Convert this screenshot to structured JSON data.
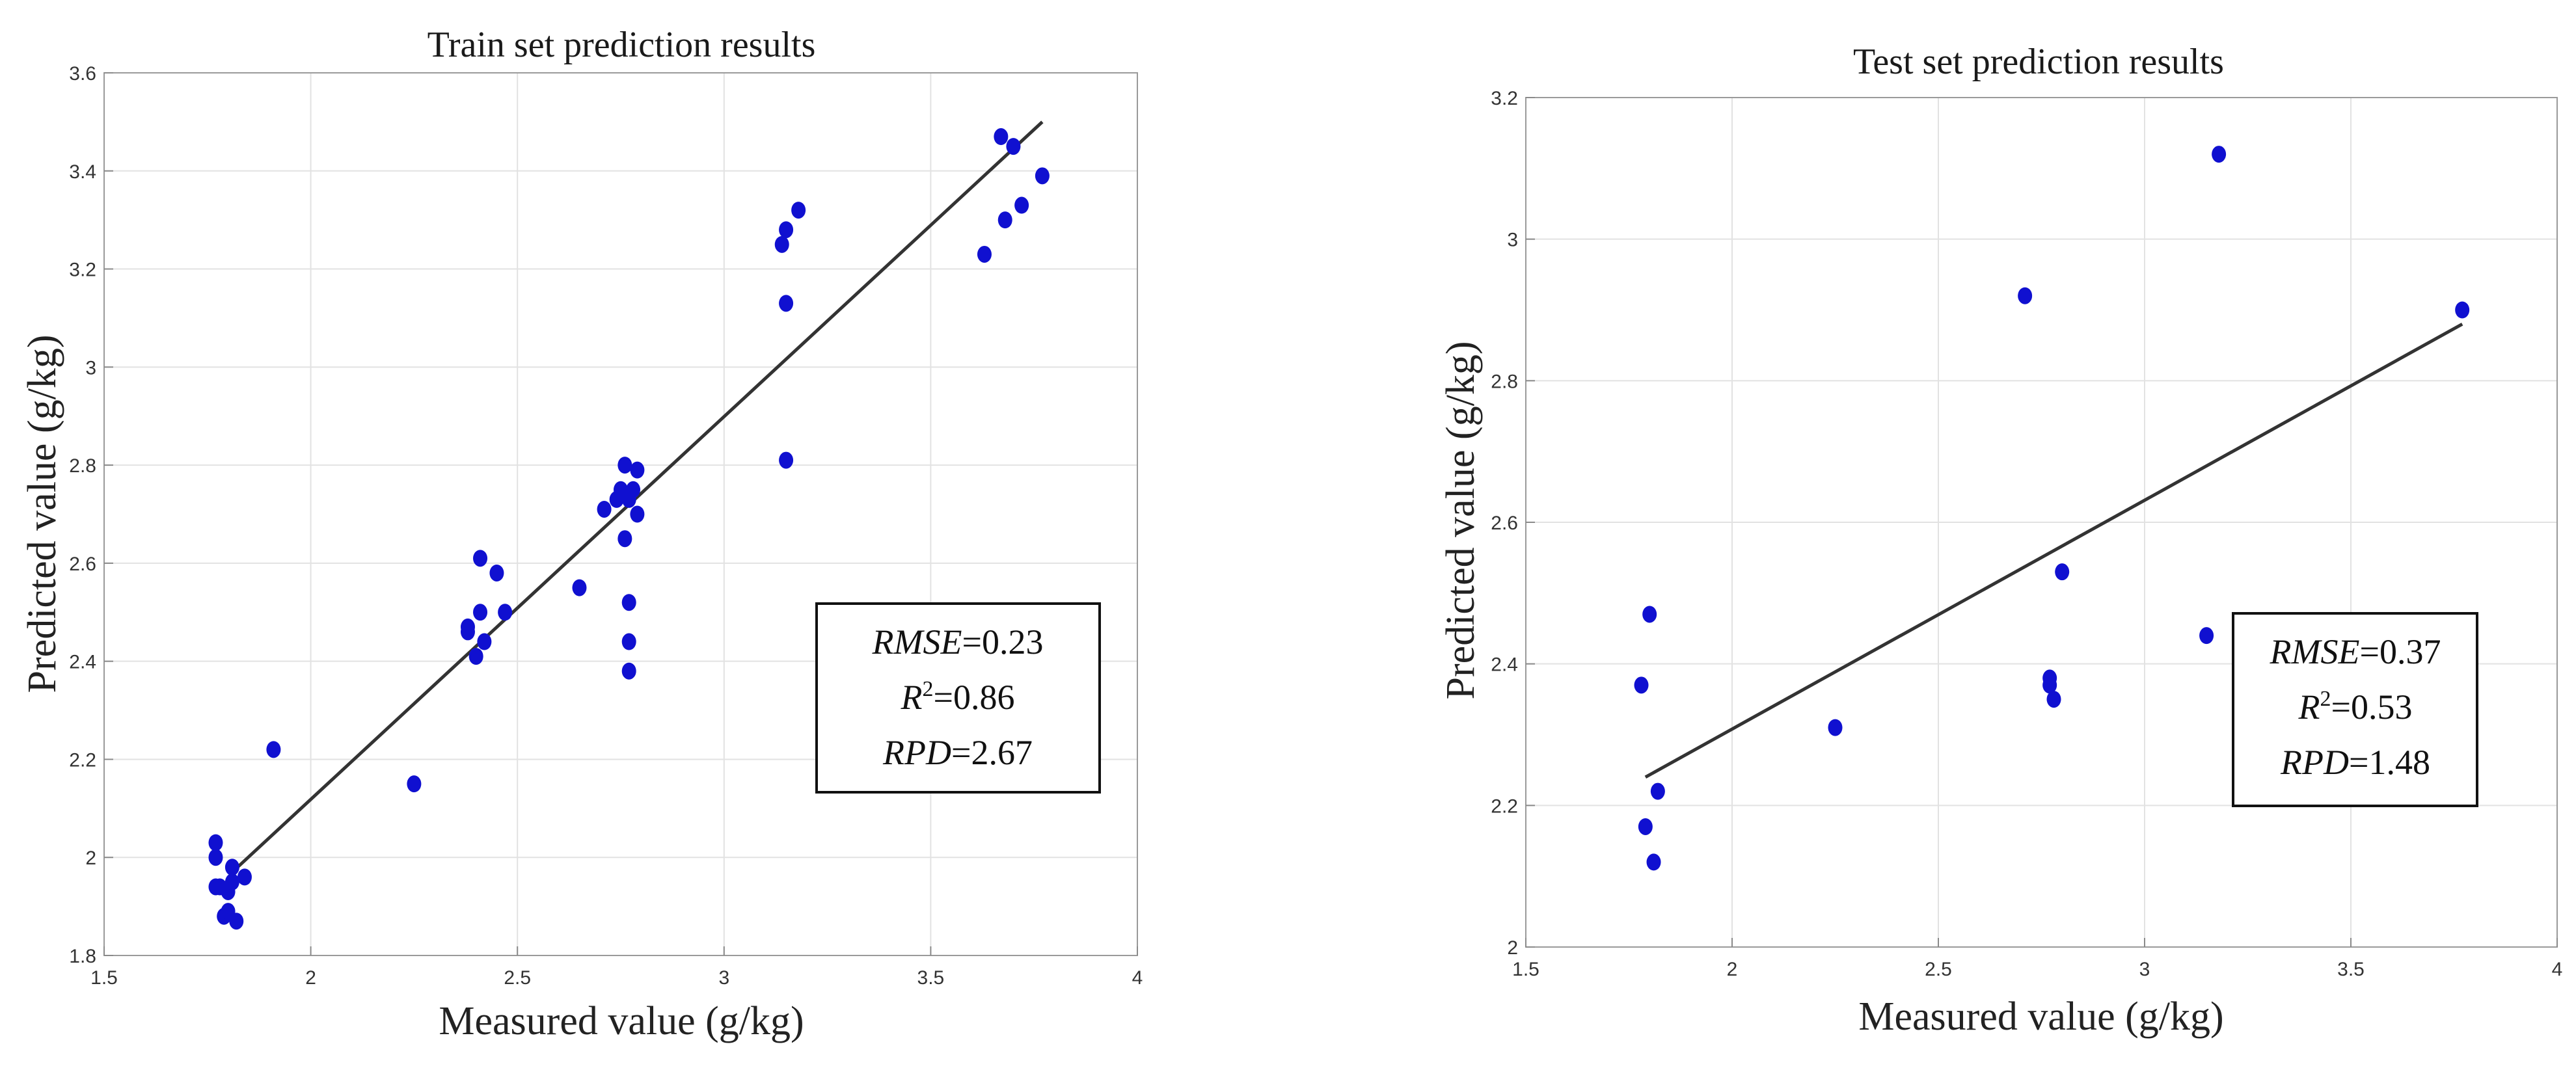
{
  "chart_data": [
    {
      "type": "scatter",
      "title": "Train set prediction results",
      "xlabel": "Measured value  (g/kg)",
      "ylabel": "Predicted value  (g/kg)",
      "xlim": [
        1.5,
        4
      ],
      "ylim": [
        1.8,
        3.6
      ],
      "xticks": [
        1.5,
        2,
        2.5,
        3,
        3.5,
        4
      ],
      "xtick_labels": [
        "1.5",
        "2",
        "2.5",
        "3",
        "3.5",
        "4"
      ],
      "yticks": [
        1.8,
        2,
        2.2,
        2.4,
        2.6,
        2.8,
        3,
        3.2,
        3.4,
        3.6
      ],
      "ytick_labels": [
        "1.8",
        "2",
        "2.2",
        "2.4",
        "2.6",
        "2.8",
        "3",
        "3.2",
        "3.4",
        "3.6"
      ],
      "grid": true,
      "point_color": "#1010d0",
      "line_color": "#333333",
      "fit_line": {
        "x": [
          1.81,
          3.77
        ],
        "y": [
          1.97,
          3.5
        ]
      },
      "points": [
        [
          1.77,
          2.03
        ],
        [
          1.77,
          2.0
        ],
        [
          1.77,
          1.94
        ],
        [
          1.78,
          1.94
        ],
        [
          1.79,
          1.88
        ],
        [
          1.8,
          1.93
        ],
        [
          1.8,
          1.89
        ],
        [
          1.81,
          1.95
        ],
        [
          1.81,
          1.98
        ],
        [
          1.82,
          1.87
        ],
        [
          1.84,
          1.96
        ],
        [
          1.91,
          2.22
        ],
        [
          2.25,
          2.15
        ],
        [
          2.38,
          2.46
        ],
        [
          2.38,
          2.47
        ],
        [
          2.4,
          2.41
        ],
        [
          2.41,
          2.61
        ],
        [
          2.41,
          2.5
        ],
        [
          2.42,
          2.44
        ],
        [
          2.45,
          2.58
        ],
        [
          2.47,
          2.5
        ],
        [
          2.65,
          2.55
        ],
        [
          2.71,
          2.71
        ],
        [
          2.74,
          2.73
        ],
        [
          2.75,
          2.75
        ],
        [
          2.76,
          2.65
        ],
        [
          2.76,
          2.8
        ],
        [
          2.77,
          2.73
        ],
        [
          2.77,
          2.52
        ],
        [
          2.77,
          2.44
        ],
        [
          2.77,
          2.38
        ],
        [
          2.78,
          2.75
        ],
        [
          2.79,
          2.7
        ],
        [
          2.79,
          2.79
        ],
        [
          3.14,
          3.25
        ],
        [
          3.15,
          3.28
        ],
        [
          3.15,
          3.13
        ],
        [
          3.15,
          2.81
        ],
        [
          3.18,
          3.32
        ],
        [
          3.63,
          3.23
        ],
        [
          3.67,
          3.47
        ],
        [
          3.68,
          3.3
        ],
        [
          3.7,
          3.45
        ],
        [
          3.72,
          3.33
        ],
        [
          3.77,
          3.39
        ]
      ],
      "stats": {
        "rmse_label": "RMSE",
        "rmse": "=0.23",
        "r_label": "R",
        "r_sup": "2",
        "r2": "=0.86",
        "rpd_label": "RPD",
        "rpd": "=2.67"
      },
      "legend_position": "lower-right"
    },
    {
      "type": "scatter",
      "title": "Test set prediction results",
      "xlabel": "Measured value (g/kg)",
      "ylabel": "Predicted value  (g/kg)",
      "xlim": [
        1.5,
        4
      ],
      "ylim": [
        2,
        3.2
      ],
      "xticks": [
        1.5,
        2,
        2.5,
        3,
        3.5,
        4
      ],
      "xtick_labels": [
        "1.5",
        "2",
        "2.5",
        "3",
        "3.5",
        "4"
      ],
      "yticks": [
        2,
        2.2,
        2.4,
        2.6,
        2.8,
        3,
        3.2
      ],
      "ytick_labels": [
        "2",
        "2.2",
        "2.4",
        "2.6",
        "2.8",
        "3",
        "3.2"
      ],
      "grid": true,
      "point_color": "#1010d0",
      "line_color": "#333333",
      "fit_line": {
        "x": [
          1.79,
          3.77
        ],
        "y": [
          2.24,
          2.88
        ]
      },
      "points": [
        [
          1.78,
          2.37
        ],
        [
          1.79,
          2.17
        ],
        [
          1.8,
          2.47
        ],
        [
          1.81,
          2.12
        ],
        [
          1.82,
          2.22
        ],
        [
          2.25,
          2.31
        ],
        [
          2.71,
          2.92
        ],
        [
          2.77,
          2.38
        ],
        [
          2.77,
          2.37
        ],
        [
          2.78,
          2.35
        ],
        [
          2.8,
          2.53
        ],
        [
          3.15,
          2.44
        ],
        [
          3.18,
          3.12
        ],
        [
          3.77,
          2.9
        ]
      ],
      "stats": {
        "rmse_label": "RMSE",
        "rmse": "=0.37",
        "r_label": "R",
        "r_sup": "2",
        "r2": "=0.53",
        "rpd_label": "RPD",
        "rpd": "=1.48"
      },
      "legend_position": "lower-right"
    }
  ]
}
